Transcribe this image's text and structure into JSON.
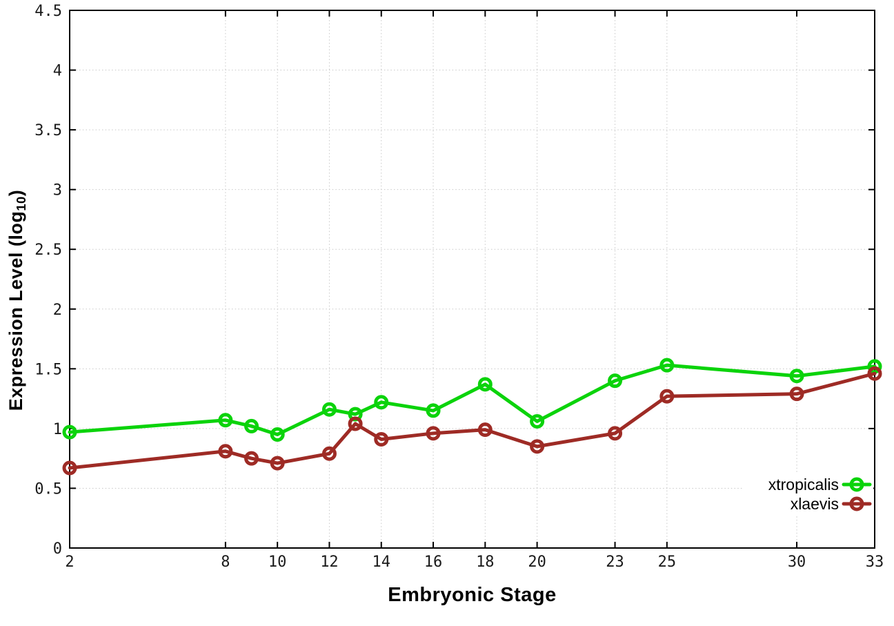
{
  "figure": {
    "background": "#ffffff"
  },
  "chart_data": {
    "type": "line",
    "title": "",
    "xlabel": "Embryonic Stage",
    "ylabel": "Expression Level (log10)",
    "ylabel_parts": {
      "main": "Expression Level (log",
      "sub": "10",
      "end": ")"
    },
    "xlim": [
      2,
      33
    ],
    "ylim": [
      0,
      4.5
    ],
    "xticks": [
      2,
      8,
      10,
      12,
      14,
      16,
      18,
      20,
      23,
      25,
      30,
      33
    ],
    "xtick_labels": [
      "2",
      "8",
      "10",
      "12",
      "14",
      "16",
      "18",
      "20",
      "23",
      "25",
      "30",
      "33"
    ],
    "yticks": [
      0,
      0.5,
      1,
      1.5,
      2,
      2.5,
      3,
      3.5,
      4,
      4.5
    ],
    "ytick_labels": [
      "0",
      "0.5",
      "1",
      "1.5",
      "2",
      "2.5",
      "3",
      "3.5",
      "4",
      "4.5"
    ],
    "grid": true,
    "grid_style": "dotted",
    "legend_position": "inside-right-bottom",
    "x": [
      2,
      8,
      9,
      10,
      12,
      13,
      14,
      16,
      18,
      20,
      23,
      25,
      30,
      33
    ],
    "series": [
      {
        "name": "xtropicalis",
        "color": "#0bd30b",
        "marker": "open-circle",
        "values": [
          0.97,
          1.07,
          1.02,
          0.95,
          1.16,
          1.12,
          1.22,
          1.15,
          1.37,
          1.06,
          1.4,
          1.53,
          1.44,
          1.52
        ]
      },
      {
        "name": "xlaevis",
        "color": "#9e2b25",
        "marker": "open-circle",
        "values": [
          0.67,
          0.81,
          0.75,
          0.71,
          0.79,
          1.04,
          0.91,
          0.96,
          0.99,
          0.85,
          0.96,
          1.27,
          1.29,
          1.46
        ]
      }
    ],
    "colors": {
      "axis": "#000000",
      "grid": "#c8c8c8",
      "tick_text": "#1a1a1a"
    }
  }
}
